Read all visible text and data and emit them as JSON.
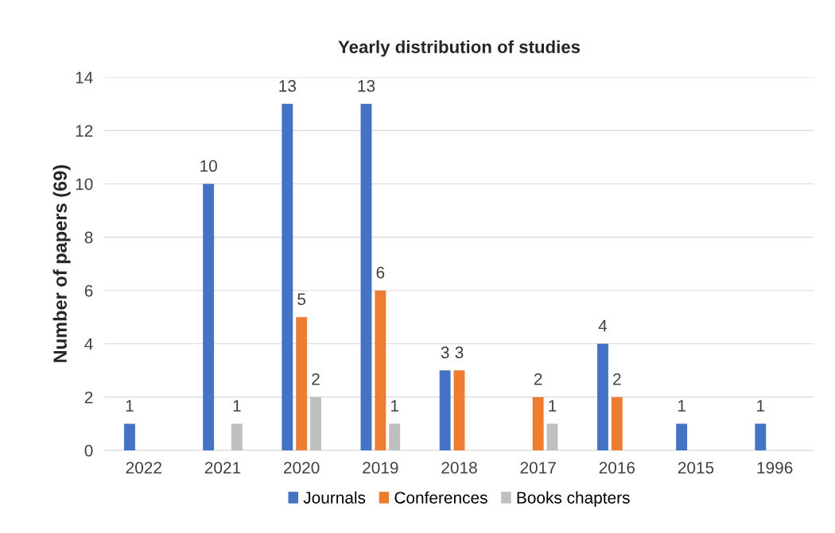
{
  "chart_data": {
    "type": "bar",
    "title": "Yearly distribution of studies",
    "ylabel": "Number of papers (69)",
    "categories": [
      "2022",
      "2021",
      "2020",
      "2019",
      "2018",
      "2017",
      "2016",
      "2015",
      "1996"
    ],
    "series": [
      {
        "name": "Journals",
        "color": "#4472c4",
        "values": [
          1,
          10,
          13,
          13,
          3,
          null,
          4,
          1,
          1
        ]
      },
      {
        "name": "Conferences",
        "color": "#ed7d31",
        "values": [
          null,
          null,
          5,
          6,
          3,
          2,
          2,
          null,
          null
        ]
      },
      {
        "name": "Books chapters",
        "color": "#bfbfbf",
        "values": [
          null,
          1,
          2,
          1,
          null,
          1,
          null,
          null,
          null
        ]
      }
    ],
    "ylim": [
      0,
      14
    ],
    "yticks": [
      0,
      2,
      4,
      6,
      8,
      10,
      12,
      14
    ],
    "grid": "y",
    "legend": "bottom",
    "data_labels": true
  }
}
